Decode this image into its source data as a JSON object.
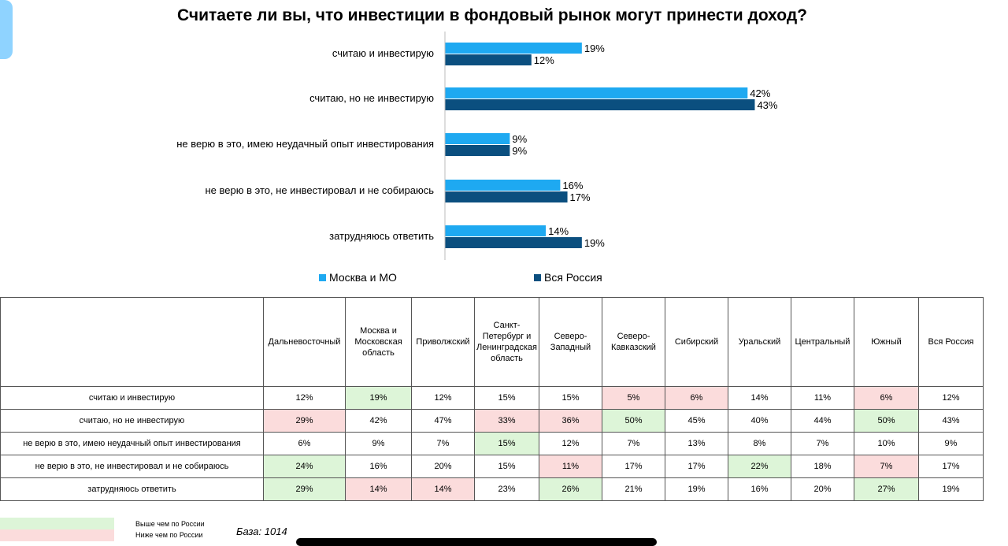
{
  "title": "Считаете ли вы, что инвестиции в фондовый рынок могут принести доход?",
  "chart_data": {
    "type": "bar",
    "orientation": "horizontal",
    "categories": [
      "считаю и инвестирую",
      "считаю, но не инвестирую",
      "не верю в это, имею неудачный опыт инвестирования",
      "не верю в это, не инвестировал и не собираюсь",
      "затрудняюсь ответить"
    ],
    "series": [
      {
        "name": "Москва и МО",
        "color": "#1ea9f1",
        "values": [
          19,
          42,
          9,
          16,
          14
        ]
      },
      {
        "name": "Вся Россия",
        "color": "#0b4f7f",
        "values": [
          12,
          43,
          9,
          17,
          19
        ]
      }
    ],
    "value_suffix": "%",
    "xlim": [
      0,
      50
    ],
    "legend_position": "bottom",
    "grid": false
  },
  "table": {
    "columns": [
      "",
      "Дальневосточный",
      "Москва и Московская область",
      "Приволжский",
      "Санкт-Петербург и Ленинградская область",
      "Северо-Западный",
      "Северо-Кавказский",
      "Сибирский",
      "Уральский",
      "Центральный",
      "Южный",
      "Вся Россия"
    ],
    "rows": [
      {
        "label": "считаю и инвестирую",
        "cells": [
          "12%",
          "19%",
          "12%",
          "15%",
          "15%",
          "5%",
          "6%",
          "14%",
          "11%",
          "6%",
          "12%"
        ],
        "marks": [
          "",
          "hi",
          "",
          "",
          "",
          "lo",
          "lo",
          "",
          "",
          "lo",
          ""
        ]
      },
      {
        "label": "считаю, но не инвестирую",
        "cells": [
          "29%",
          "42%",
          "47%",
          "33%",
          "36%",
          "50%",
          "45%",
          "40%",
          "44%",
          "50%",
          "43%"
        ],
        "marks": [
          "lo",
          "",
          "",
          "lo",
          "lo",
          "hi",
          "",
          "",
          "",
          "hi",
          ""
        ]
      },
      {
        "label": "не верю в это, имею неудачный опыт инвестирования",
        "cells": [
          "6%",
          "9%",
          "7%",
          "15%",
          "12%",
          "7%",
          "13%",
          "8%",
          "7%",
          "10%",
          "9%"
        ],
        "marks": [
          "",
          "",
          "",
          "hi",
          "",
          "",
          "",
          "",
          "",
          "",
          ""
        ]
      },
      {
        "label": "не верю в это, не инвестировал и не собираюсь",
        "cells": [
          "24%",
          "16%",
          "20%",
          "15%",
          "11%",
          "17%",
          "17%",
          "22%",
          "18%",
          "7%",
          "17%"
        ],
        "marks": [
          "hi",
          "",
          "",
          "",
          "lo",
          "",
          "",
          "hi",
          "",
          "lo",
          ""
        ]
      },
      {
        "label": "затрудняюсь ответить",
        "cells": [
          "29%",
          "14%",
          "14%",
          "23%",
          "26%",
          "21%",
          "19%",
          "16%",
          "20%",
          "27%",
          "19%"
        ],
        "marks": [
          "hi",
          "lo",
          "lo",
          "",
          "hi",
          "",
          "",
          "",
          "",
          "hi",
          ""
        ]
      }
    ]
  },
  "footer_legend": {
    "higher": {
      "label": "Выше чем по России",
      "color": "#ddf5d8"
    },
    "lower": {
      "label": "Ниже чем по России",
      "color": "#fbdcdc"
    }
  },
  "base_text": "База: 1014"
}
